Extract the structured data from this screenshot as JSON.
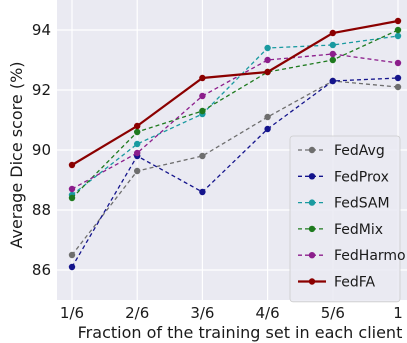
{
  "chart_data": {
    "type": "line",
    "title": "",
    "xlabel": "Fraction of the training set in each client",
    "ylabel": "Average Dice score (%)",
    "categories": [
      "1/6",
      "2/6",
      "3/6",
      "4/6",
      "5/6",
      "1"
    ],
    "yticks": [
      "86",
      "88",
      "90",
      "92",
      "94"
    ],
    "ylim": [
      85.0,
      95.0
    ],
    "grid": true,
    "legend_position": "bottom-right",
    "series": [
      {
        "name": "FedAvg",
        "color": "#6e6e6e",
        "dashed": true,
        "values": [
          86.5,
          89.3,
          89.8,
          91.1,
          92.3,
          92.1
        ]
      },
      {
        "name": "FedProx",
        "color": "#14148c",
        "dashed": true,
        "values": [
          86.1,
          89.8,
          88.6,
          90.7,
          92.3,
          92.4
        ]
      },
      {
        "name": "FedSAM",
        "color": "#1a9aa0",
        "dashed": true,
        "values": [
          88.5,
          90.2,
          91.2,
          93.4,
          93.5,
          93.8
        ]
      },
      {
        "name": "FedMix",
        "color": "#1e7a1e",
        "dashed": true,
        "values": [
          88.4,
          90.6,
          91.3,
          92.6,
          93.0,
          94.0
        ]
      },
      {
        "name": "FedHarmo",
        "color": "#8c1e8c",
        "dashed": true,
        "values": [
          88.7,
          89.9,
          91.8,
          93.0,
          93.2,
          92.9
        ]
      },
      {
        "name": "FedFA",
        "color": "#8b0000",
        "dashed": false,
        "values": [
          89.5,
          90.8,
          92.4,
          92.6,
          93.9,
          94.3
        ]
      }
    ]
  }
}
